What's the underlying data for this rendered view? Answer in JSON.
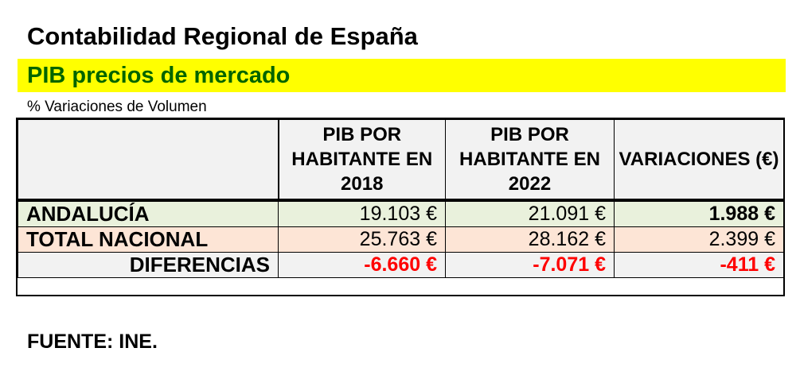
{
  "title": "Contabilidad Regional de España",
  "subtitle": "PIB precios de mercado",
  "caption": "% Variaciones de Volumen",
  "table": {
    "headers": [
      "",
      "PIB POR HABITANTE EN 2018",
      "PIB POR HABITANTE EN 2022",
      "VARIACIONES (€)"
    ],
    "rows": [
      {
        "label": "ANDALUCÍA",
        "v2018": "19.103 €",
        "v2022": "21.091 €",
        "variacion": "1.988 €"
      },
      {
        "label": "TOTAL NACIONAL",
        "v2018": "25.763 €",
        "v2022": "28.162 €",
        "variacion": "2.399 €"
      },
      {
        "label": "DIFERENCIAS",
        "v2018": "-6.660 €",
        "v2022": "-7.071 €",
        "variacion": "-411 €"
      }
    ]
  },
  "source": "FUENTE: INE.",
  "colors": {
    "subtitle_bar": "#ffff00",
    "subtitle_text": "#006400",
    "andalucia_row": "#e9f1dc",
    "total_row": "#fde5d6",
    "diferencias_row": "#f2f2f2",
    "negative_value": "#ff0000"
  }
}
